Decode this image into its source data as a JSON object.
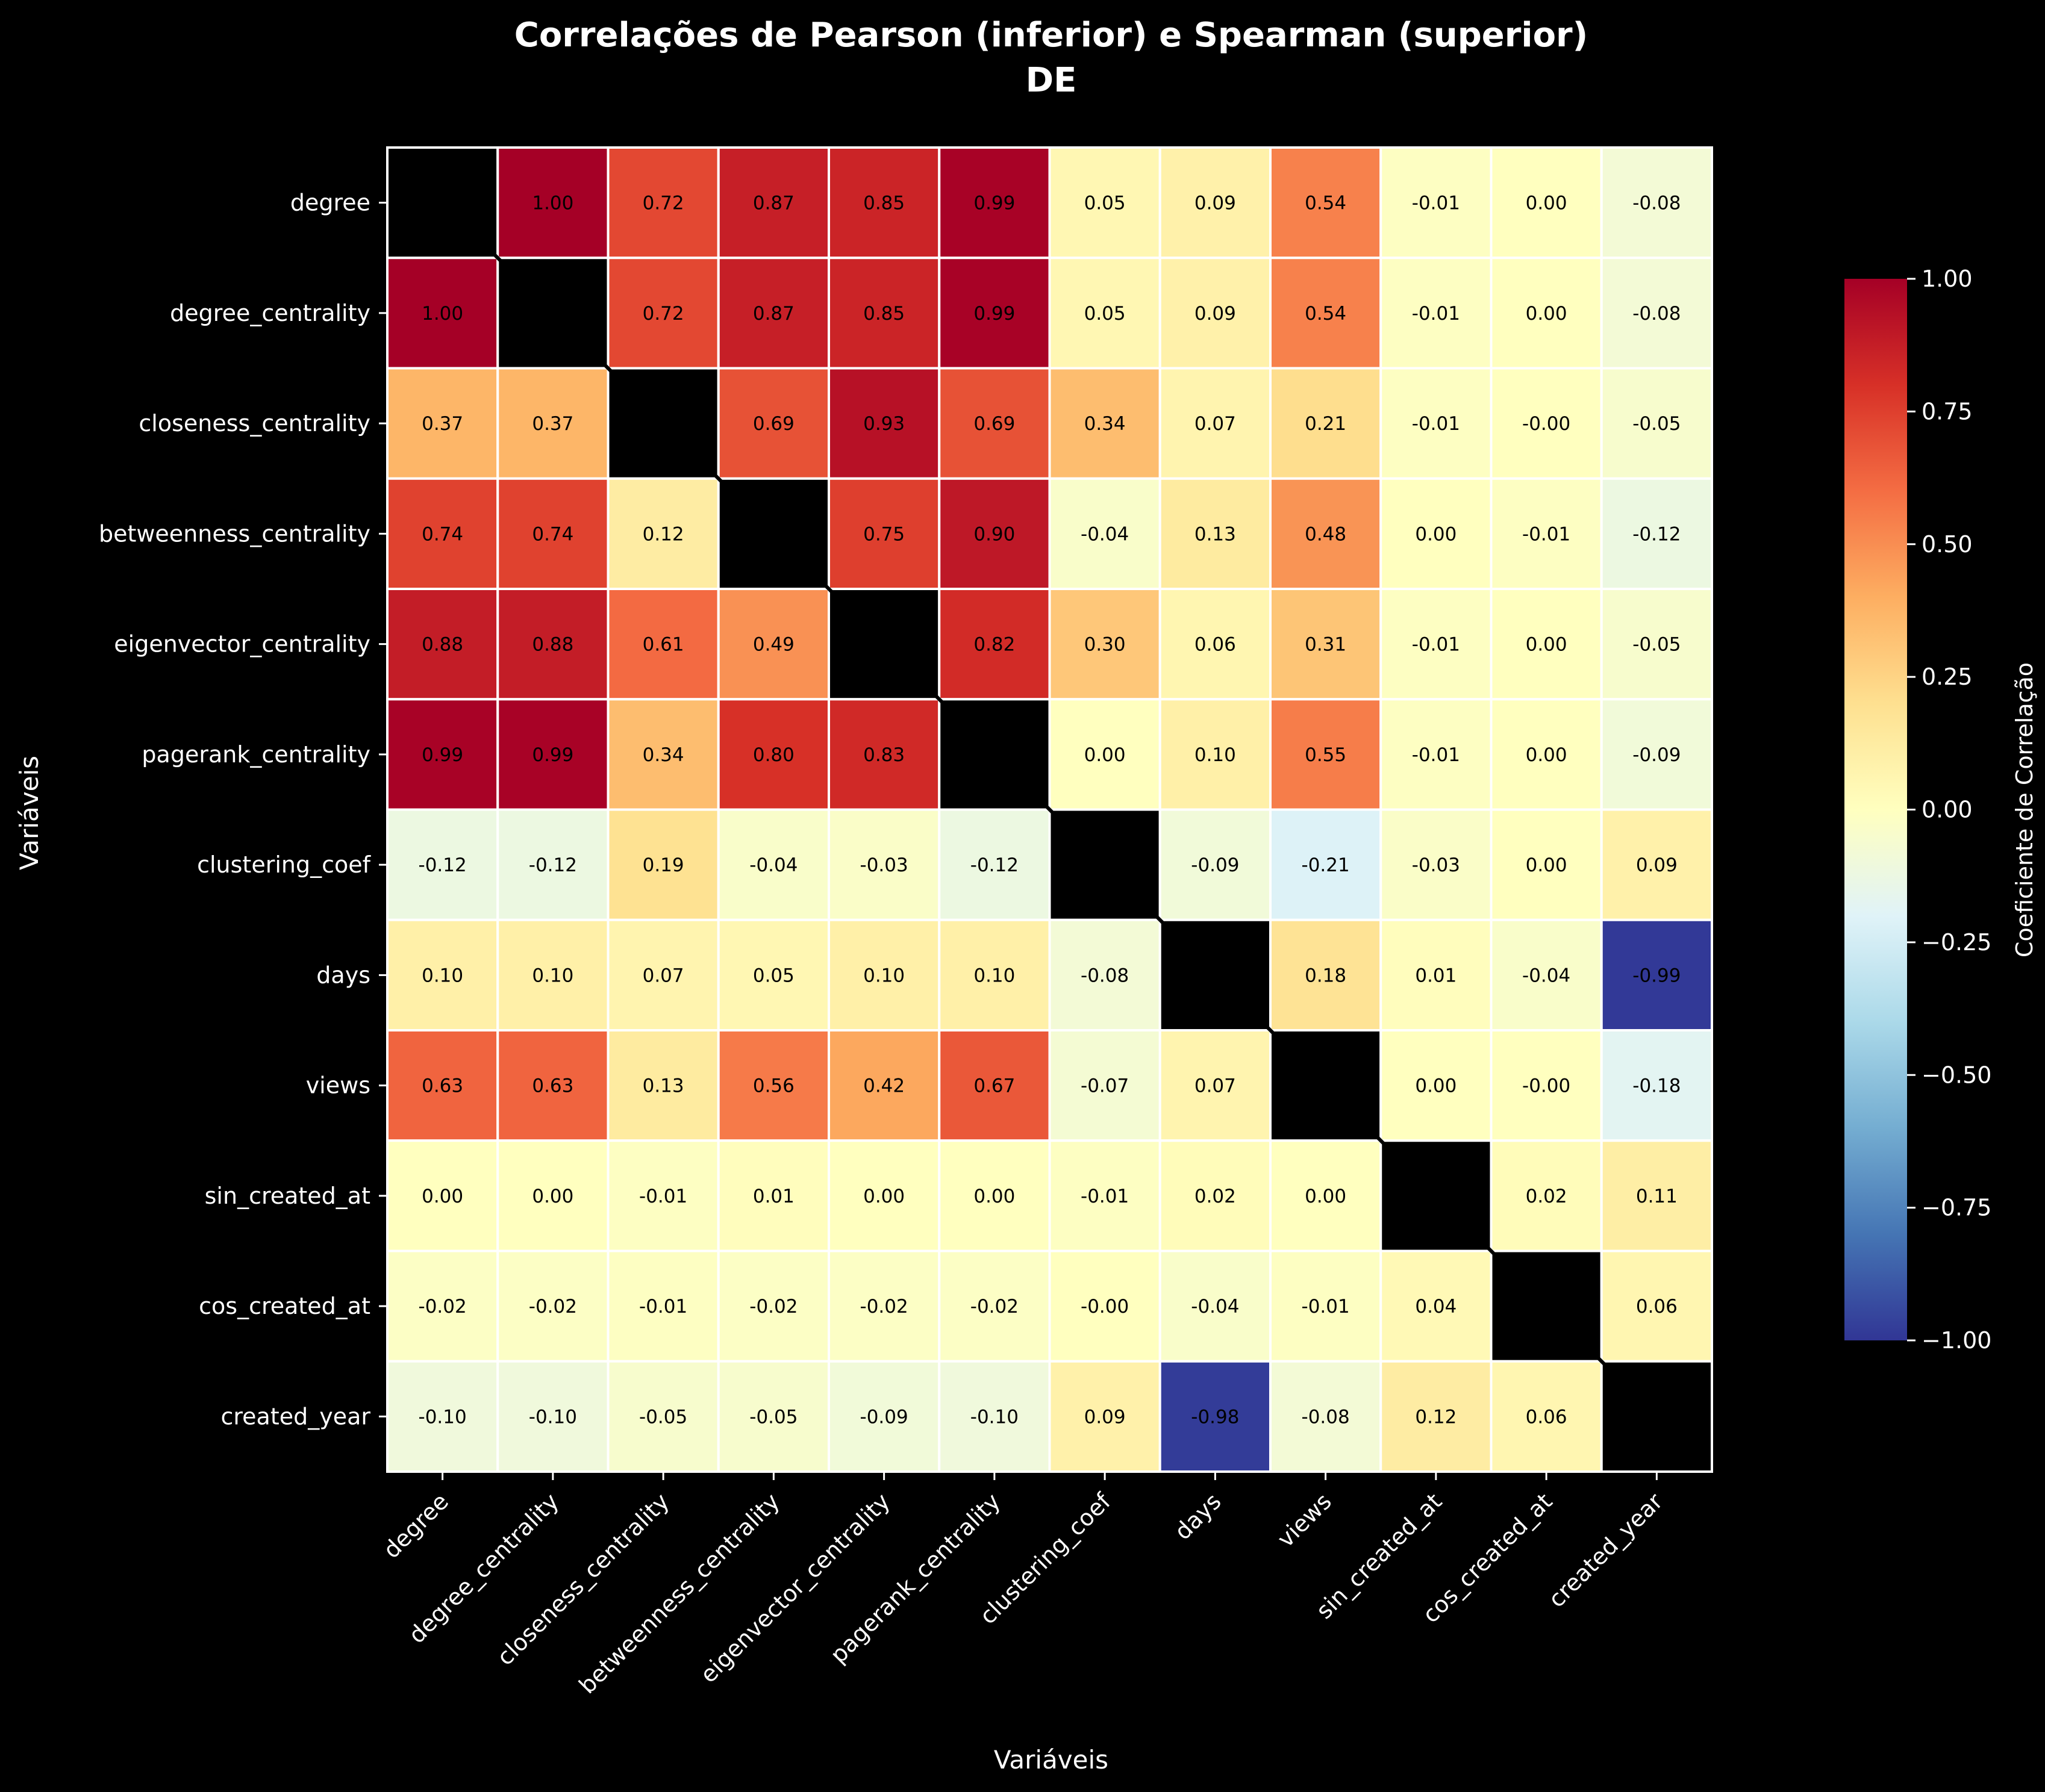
{
  "chart_data": {
    "type": "heatmap",
    "title_lines": [
      "Correlações de Pearson (inferior) e Spearman (superior)",
      "DE"
    ],
    "xlabel": "Variáveis",
    "ylabel": "Variáveis",
    "variables": [
      "degree",
      "degree_centrality",
      "closeness_centrality",
      "betweenness_centrality",
      "eigenvector_centrality",
      "pagerank_centrality",
      "clustering_coef",
      "days",
      "views",
      "sin_created_at",
      "cos_created_at",
      "created_year"
    ],
    "matrix_labels": [
      [
        "",
        "1.00",
        "0.72",
        "0.87",
        "0.85",
        "0.99",
        "0.05",
        "0.09",
        "0.54",
        "-0.01",
        "0.00",
        "-0.08"
      ],
      [
        "1.00",
        "",
        "0.72",
        "0.87",
        "0.85",
        "0.99",
        "0.05",
        "0.09",
        "0.54",
        "-0.01",
        "0.00",
        "-0.08"
      ],
      [
        "0.37",
        "0.37",
        "",
        "0.69",
        "0.93",
        "0.69",
        "0.34",
        "0.07",
        "0.21",
        "-0.01",
        "-0.00",
        "-0.05"
      ],
      [
        "0.74",
        "0.74",
        "0.12",
        "",
        "0.75",
        "0.90",
        "-0.04",
        "0.13",
        "0.48",
        "0.00",
        "-0.01",
        "-0.12"
      ],
      [
        "0.88",
        "0.88",
        "0.61",
        "0.49",
        "",
        "0.82",
        "0.30",
        "0.06",
        "0.31",
        "-0.01",
        "0.00",
        "-0.05"
      ],
      [
        "0.99",
        "0.99",
        "0.34",
        "0.80",
        "0.83",
        "",
        "0.00",
        "0.10",
        "0.55",
        "-0.01",
        "0.00",
        "-0.09"
      ],
      [
        "-0.12",
        "-0.12",
        "0.19",
        "-0.04",
        "-0.03",
        "-0.12",
        "",
        "-0.09",
        "-0.21",
        "-0.03",
        "0.00",
        "0.09"
      ],
      [
        "0.10",
        "0.10",
        "0.07",
        "0.05",
        "0.10",
        "0.10",
        "-0.08",
        "",
        "0.18",
        "0.01",
        "-0.04",
        "-0.99"
      ],
      [
        "0.63",
        "0.63",
        "0.13",
        "0.56",
        "0.42",
        "0.67",
        "-0.07",
        "0.07",
        "",
        "0.00",
        "-0.00",
        "-0.18"
      ],
      [
        "0.00",
        "0.00",
        "-0.01",
        "0.01",
        "0.00",
        "0.00",
        "-0.01",
        "0.02",
        "0.00",
        "",
        "0.02",
        "0.11"
      ],
      [
        "-0.02",
        "-0.02",
        "-0.01",
        "-0.02",
        "-0.02",
        "-0.02",
        "-0.00",
        "-0.04",
        "-0.01",
        "0.04",
        "",
        "0.06"
      ],
      [
        "-0.10",
        "-0.10",
        "-0.05",
        "-0.05",
        "-0.09",
        "-0.10",
        "0.09",
        "-0.98",
        "-0.08",
        "0.12",
        "0.06",
        ""
      ]
    ],
    "diagonal_color": "#000000",
    "colormap": "RdYlBu_r",
    "vmin": -1.0,
    "vmax": 1.0,
    "colorbar": {
      "label": "Coeficiente de Correlação",
      "ticks": [
        "1.00",
        "0.75",
        "0.50",
        "0.25",
        "0.00",
        "−0.25",
        "−0.50",
        "−0.75",
        "−1.00"
      ],
      "tick_values": [
        1.0,
        0.75,
        0.5,
        0.25,
        0.0,
        -0.25,
        -0.5,
        -0.75,
        -1.0
      ]
    },
    "grid": true,
    "grid_color": "#ffffff"
  }
}
